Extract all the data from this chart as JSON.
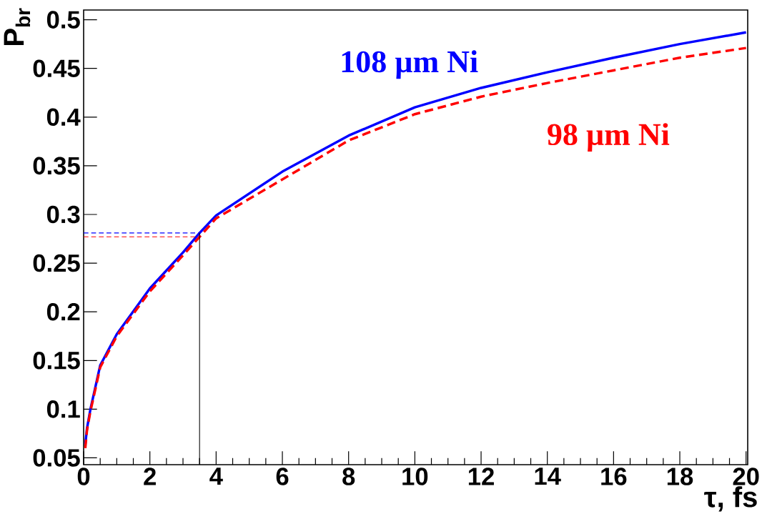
{
  "chart_data": {
    "type": "line",
    "xlabel": "τ, fs",
    "ylabel": "P$_{br}$",
    "x": [
      0.05,
      0.1,
      0.2,
      0.5,
      1,
      2,
      3,
      3.5,
      4,
      6,
      8,
      10,
      12,
      14,
      16,
      18,
      20
    ],
    "series": [
      {
        "name": "108 µm Ni",
        "color": "#0000ff",
        "line_style": "solid",
        "values": [
          0.064,
          0.08,
          0.099,
          0.145,
          0.177,
          0.224,
          0.261,
          0.281,
          0.299,
          0.344,
          0.381,
          0.41,
          0.43,
          0.446,
          0.461,
          0.475,
          0.487
        ]
      },
      {
        "name": "98 µm Ni",
        "color": "#ff0000",
        "line_style": "dashed",
        "values": [
          0.06,
          0.078,
          0.097,
          0.143,
          0.175,
          0.221,
          0.258,
          0.277,
          0.296,
          0.336,
          0.376,
          0.403,
          0.421,
          0.435,
          0.448,
          0.461,
          0.471
        ]
      }
    ],
    "ref_lines": [
      {
        "axis": "y",
        "value": 0.281,
        "color": "#0000ff",
        "line_style": "dashed"
      },
      {
        "axis": "y",
        "value": 0.277,
        "color": "#ff0000",
        "line_style": "dashed"
      },
      {
        "axis": "x",
        "value": 3.5,
        "color": "#000000",
        "line_style": "solid"
      }
    ],
    "xlim": [
      0,
      20.05
    ],
    "ylim": [
      0.043,
      0.51
    ],
    "xticks": [
      0,
      2,
      4,
      6,
      8,
      10,
      12,
      14,
      16,
      18,
      20
    ],
    "yticks": [
      0.05,
      0.1,
      0.15,
      0.2,
      0.25,
      0.3,
      0.35,
      0.4,
      0.45,
      0.5
    ],
    "grid": false,
    "legend": false,
    "marker": "none"
  }
}
